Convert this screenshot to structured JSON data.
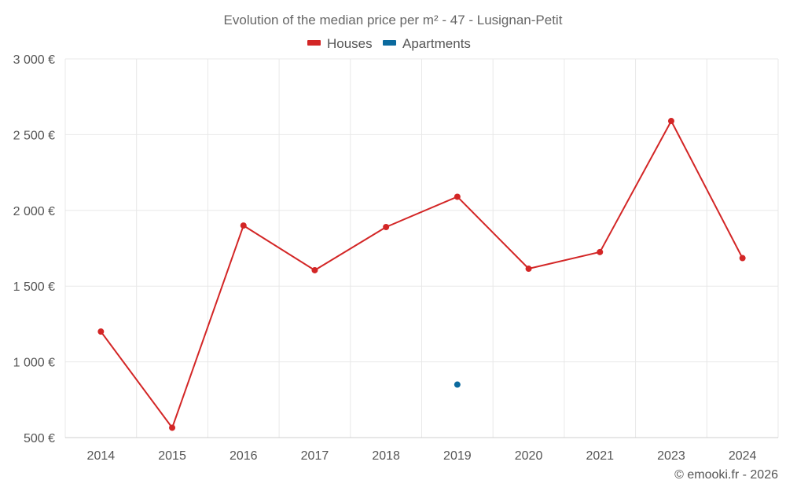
{
  "chart_data": {
    "type": "line",
    "title": "Evolution of the median price per m² - 47 - Lusignan-Petit",
    "categories": [
      "2014",
      "2015",
      "2016",
      "2017",
      "2018",
      "2019",
      "2020",
      "2021",
      "2023",
      "2024"
    ],
    "series": [
      {
        "name": "Houses",
        "color": "#d32626",
        "values": [
          1200,
          565,
          1900,
          1605,
          1890,
          2090,
          1615,
          1725,
          2590,
          1685
        ]
      },
      {
        "name": "Apartments",
        "color": "#0b6a9e",
        "values": [
          null,
          null,
          null,
          null,
          null,
          850,
          null,
          null,
          null,
          null
        ]
      }
    ],
    "yticks": [
      500,
      1000,
      1500,
      2000,
      2500,
      3000
    ],
    "ytick_labels": [
      "500 €",
      "1 000 €",
      "1 500 €",
      "2 000 €",
      "2 500 €",
      "3 000 €"
    ],
    "ylim": [
      500,
      3000
    ],
    "xlabel": "",
    "ylabel": "",
    "grid": true,
    "legend_position": "top-center"
  },
  "credit": "© emooki.fr - 2026"
}
